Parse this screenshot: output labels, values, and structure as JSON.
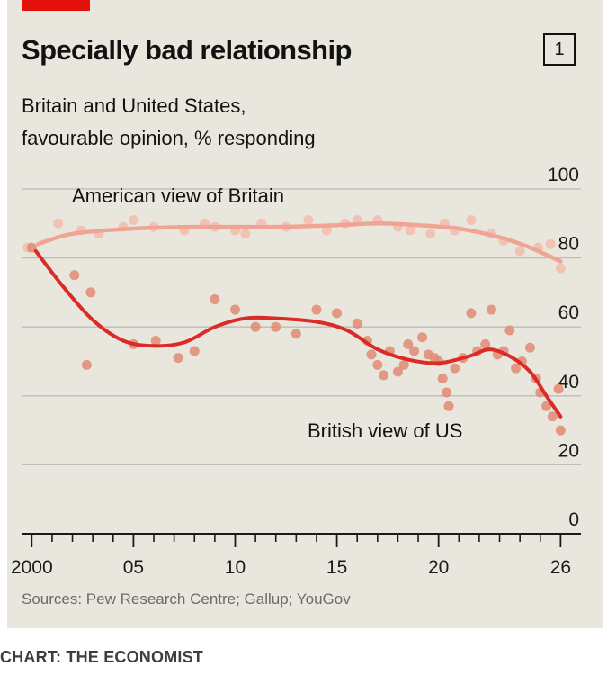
{
  "header": {
    "title": "Specially bad relationship",
    "badge": "1",
    "subtitle_line1": "Britain and United States,",
    "subtitle_line2": "favourable opinion, % responding"
  },
  "footer": {
    "source": "Sources: Pew Research Centre; Gallup; YouGov",
    "credit": "CHART: THE ECONOMIST"
  },
  "colors": {
    "american_line": "#f0a594",
    "american_points": "#f3bcae",
    "british_line": "#db2b27",
    "british_points": "#e08a72",
    "grid": "#bdbcb6",
    "axis": "#1a1a1a"
  },
  "chart_data": {
    "type": "line",
    "title": "Specially bad relationship",
    "subtitle": "Britain and United States, favourable opinion, % responding",
    "xlim": [
      1999.5,
      2027
    ],
    "ylim": [
      0,
      100
    ],
    "y_ticks": [
      0,
      20,
      40,
      60,
      80,
      100
    ],
    "y_tick_labels": [
      "0",
      "20",
      "40",
      "60",
      "80",
      "100"
    ],
    "x_ticks": [
      2000,
      2005,
      2010,
      2015,
      2020,
      2026
    ],
    "x_tick_labels": [
      "2000",
      "05",
      "10",
      "15",
      "20",
      "26"
    ],
    "x_minor_ticks": [
      2001,
      2002,
      2003,
      2004,
      2006,
      2007,
      2008,
      2009,
      2011,
      2012,
      2013,
      2014,
      2016,
      2017,
      2018,
      2019,
      2021,
      2022,
      2023,
      2024,
      2025
    ],
    "grid": true,
    "series": [
      {
        "name": "American view of Britain",
        "points": [
          [
            1999.8,
            83
          ],
          [
            2001.3,
            90
          ],
          [
            2002.4,
            88
          ],
          [
            2003.3,
            87
          ],
          [
            2004.5,
            89
          ],
          [
            2005.0,
            91
          ],
          [
            2006.0,
            89
          ],
          [
            2007.5,
            88
          ],
          [
            2008.5,
            90
          ],
          [
            2009.0,
            89
          ],
          [
            2010.0,
            88
          ],
          [
            2010.5,
            87
          ],
          [
            2011.3,
            90
          ],
          [
            2012.5,
            89
          ],
          [
            2013.6,
            91
          ],
          [
            2014.5,
            88
          ],
          [
            2015.4,
            90
          ],
          [
            2016.0,
            91
          ],
          [
            2017.0,
            91
          ],
          [
            2018.0,
            89
          ],
          [
            2018.6,
            88
          ],
          [
            2019.6,
            87
          ],
          [
            2020.3,
            90
          ],
          [
            2020.8,
            88
          ],
          [
            2021.6,
            91
          ],
          [
            2022.6,
            87
          ],
          [
            2023.2,
            85
          ],
          [
            2024.0,
            82
          ],
          [
            2024.9,
            83
          ],
          [
            2025.5,
            84
          ],
          [
            2026.0,
            77
          ]
        ],
        "trend": [
          [
            2000.3,
            84
          ],
          [
            2002,
            87
          ],
          [
            2005,
            88.5
          ],
          [
            2008,
            89
          ],
          [
            2012,
            89
          ],
          [
            2015,
            89.5
          ],
          [
            2017,
            90
          ],
          [
            2019,
            89.5
          ],
          [
            2021,
            88.5
          ],
          [
            2023,
            86
          ],
          [
            2024.5,
            83
          ],
          [
            2026,
            79
          ]
        ]
      },
      {
        "name": "British view of US",
        "points": [
          [
            2000.0,
            83
          ],
          [
            2002.1,
            75
          ],
          [
            2002.7,
            49
          ],
          [
            2002.9,
            70
          ],
          [
            2005.0,
            55
          ],
          [
            2006.1,
            56
          ],
          [
            2007.2,
            51
          ],
          [
            2008.0,
            53
          ],
          [
            2009.0,
            68
          ],
          [
            2010.0,
            65
          ],
          [
            2011.0,
            60
          ],
          [
            2012.0,
            60
          ],
          [
            2013.0,
            58
          ],
          [
            2014.0,
            65
          ],
          [
            2015.0,
            64
          ],
          [
            2016.0,
            61
          ],
          [
            2016.5,
            56
          ],
          [
            2016.7,
            52
          ],
          [
            2017.0,
            49
          ],
          [
            2017.3,
            46
          ],
          [
            2017.6,
            53
          ],
          [
            2018.0,
            47
          ],
          [
            2018.3,
            49
          ],
          [
            2018.5,
            55
          ],
          [
            2018.8,
            53
          ],
          [
            2019.2,
            57
          ],
          [
            2019.5,
            52
          ],
          [
            2019.8,
            51
          ],
          [
            2020.0,
            50
          ],
          [
            2020.2,
            45
          ],
          [
            2020.4,
            41
          ],
          [
            2020.5,
            37
          ],
          [
            2020.8,
            48
          ],
          [
            2021.2,
            51
          ],
          [
            2021.6,
            64
          ],
          [
            2021.9,
            53
          ],
          [
            2022.3,
            55
          ],
          [
            2022.6,
            65
          ],
          [
            2022.9,
            52
          ],
          [
            2023.2,
            53
          ],
          [
            2023.5,
            59
          ],
          [
            2023.8,
            48
          ],
          [
            2024.1,
            50
          ],
          [
            2024.5,
            54
          ],
          [
            2024.8,
            45
          ],
          [
            2025.0,
            41
          ],
          [
            2025.3,
            37
          ],
          [
            2025.6,
            34
          ],
          [
            2025.9,
            42
          ],
          [
            2026.0,
            30
          ]
        ],
        "trend": [
          [
            2000.2,
            82
          ],
          [
            2001.5,
            72
          ],
          [
            2003,
            62
          ],
          [
            2004.5,
            56
          ],
          [
            2006,
            54.5
          ],
          [
            2007.5,
            55.5
          ],
          [
            2009,
            60
          ],
          [
            2010.5,
            62.5
          ],
          [
            2012,
            62.5
          ],
          [
            2014,
            61.5
          ],
          [
            2015.5,
            59
          ],
          [
            2017,
            53.5
          ],
          [
            2018.5,
            50.5
          ],
          [
            2020,
            49.5
          ],
          [
            2021.5,
            51.5
          ],
          [
            2022.5,
            53.5
          ],
          [
            2023.5,
            51.5
          ],
          [
            2024.5,
            47
          ],
          [
            2025.3,
            40
          ],
          [
            2026,
            34
          ]
        ]
      }
    ],
    "annotations": [
      "American view of Britain",
      "British view of US"
    ]
  }
}
